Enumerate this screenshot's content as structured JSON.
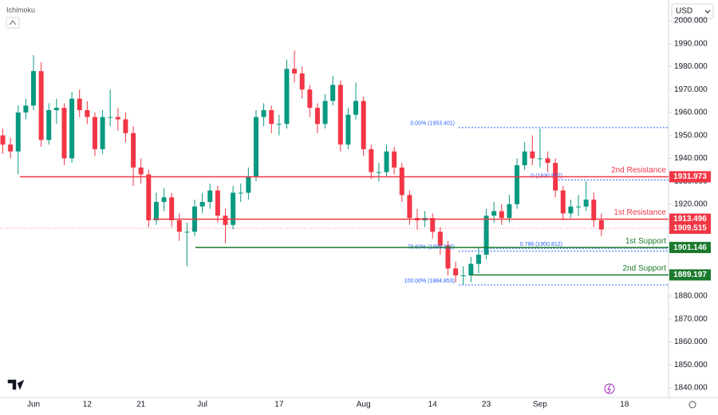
{
  "chart_data": {
    "type": "candlestick",
    "indicator": "Ichimoku",
    "currency": "USD",
    "categories": [
      null,
      null,
      null,
      null,
      "Jun",
      null,
      null,
      null,
      null,
      null,
      null,
      "12",
      null,
      null,
      null,
      null,
      null,
      null,
      "21",
      null,
      null,
      null,
      null,
      null,
      null,
      null,
      "Jul",
      null,
      null,
      null,
      null,
      null,
      null,
      null,
      null,
      null,
      "17",
      null,
      null,
      null,
      null,
      null,
      null,
      null,
      null,
      null,
      null,
      "Aug",
      null,
      null,
      null,
      null,
      null,
      null,
      null,
      null,
      "14",
      null,
      null,
      null,
      null,
      null,
      null,
      "23",
      null,
      null,
      null,
      null,
      null,
      null,
      "Sep",
      null,
      null,
      null,
      null,
      null,
      null,
      null,
      null,
      null,
      null,
      "18"
    ],
    "open": [
      1950,
      1946,
      1943,
      1960,
      1963,
      1978,
      1948,
      1961,
      1962,
      1940,
      1966,
      1961,
      1958,
      1944,
      1958,
      1958,
      1957,
      1951,
      1936,
      1933,
      1913,
      1921,
      1923,
      1913,
      1908,
      1908,
      1919,
      1921,
      1926,
      1915,
      1911,
      1925,
      1925,
      1932,
      1958,
      1961,
      1955,
      1955,
      1979,
      1977,
      1970,
      1962,
      1955,
      1965,
      1972,
      1946,
      1959,
      1965,
      1944,
      1934,
      1934,
      1943,
      1936,
      1924,
      1914,
      1913,
      1914,
      1908,
      1902,
      1892,
      1889,
      1889,
      1894,
      1898,
      1915,
      1917,
      1914,
      1920,
      1937,
      1943,
      1940,
      1940,
      1938,
      1926,
      1916,
      1919,
      1919,
      1922,
      1913,
      null,
      null,
      null
    ],
    "high": [
      1953,
      1949,
      1963,
      1966,
      1985,
      1982,
      1964,
      1966,
      1964,
      1969,
      1970,
      1965,
      1960,
      1961,
      1970,
      1962,
      1960,
      1954,
      1940,
      1935,
      1925,
      1927,
      1925,
      1916,
      1912,
      1922,
      1925,
      1929,
      1928,
      1918,
      1928,
      1929,
      1936,
      1961,
      1964,
      1963,
      1959,
      1983,
      1987,
      1980,
      1972,
      1964,
      1968,
      1976,
      1974,
      1962,
      1973,
      1967,
      1946,
      1938,
      1946,
      1945,
      1938,
      1926,
      1918,
      1917,
      1916,
      1910,
      1904,
      1895,
      1893,
      1897,
      1901,
      1918,
      1921,
      1920,
      1924,
      1940,
      1947,
      1950,
      1953,
      1943,
      1940,
      1928,
      1922,
      1924,
      1930,
      1925,
      1916,
      null,
      null,
      null
    ],
    "low": [
      1942,
      1940,
      1933,
      1957,
      1961,
      1945,
      1946,
      1955,
      1937,
      1938,
      1958,
      1955,
      1941,
      1942,
      1954,
      1952,
      1947,
      1928,
      1929,
      1910,
      1911,
      1917,
      1910,
      1904,
      1893,
      1906,
      1916,
      1918,
      1912,
      1903,
      1909,
      1921,
      1922,
      1930,
      1954,
      1951,
      1950,
      1953,
      1973,
      1966,
      1958,
      1951,
      1953,
      1963,
      1943,
      1944,
      1957,
      1941,
      1931,
      1930,
      1932,
      1933,
      1921,
      1911,
      1909,
      1910,
      1905,
      1898,
      1889,
      1886,
      1885,
      1886,
      1890,
      1896,
      1912,
      1911,
      1912,
      1918,
      1935,
      1937,
      1936,
      1934,
      1923,
      1913,
      1914,
      1915,
      1917,
      1910,
      1906,
      null,
      null,
      null
    ],
    "close": [
      1946,
      1943,
      1960,
      1963,
      1978,
      1948,
      1961,
      1962,
      1940,
      1966,
      1961,
      1958,
      1944,
      1958,
      1958,
      1957,
      1951,
      1936,
      1933,
      1913,
      1921,
      1923,
      1913,
      1908,
      1908,
      1919,
      1921,
      1926,
      1915,
      1911,
      1925,
      1925,
      1932,
      1958,
      1961,
      1955,
      1955,
      1979,
      1977,
      1970,
      1962,
      1955,
      1965,
      1972,
      1946,
      1959,
      1965,
      1944,
      1934,
      1934,
      1943,
      1936,
      1924,
      1914,
      1913,
      1914,
      1908,
      1902,
      1892,
      1889,
      1889,
      1894,
      1898,
      1915,
      1917,
      1914,
      1920,
      1937,
      1943,
      1940,
      1940,
      1938,
      1926,
      1916,
      1919,
      1919,
      1922,
      1913,
      1909,
      null,
      null,
      null
    ],
    "up_color": "#089981",
    "down_color": "#f23645",
    "ylim": [
      1835.8,
      2009
    ],
    "yticks": [
      {
        "value": 1840,
        "label": "1840.000"
      },
      {
        "value": 1850,
        "label": "1850.000"
      },
      {
        "value": 1860,
        "label": "1860.000"
      },
      {
        "value": 1870,
        "label": "1870.000"
      },
      {
        "value": 1880,
        "label": "1880.000"
      },
      {
        "value": 1890,
        "label": "1890.000"
      },
      {
        "value": 1900,
        "label": "1900.000"
      },
      {
        "value": 1910,
        "label": "1910.000"
      },
      {
        "value": 1920,
        "label": "1920.000"
      },
      {
        "value": 1930,
        "label": "1930.000"
      },
      {
        "value": 1940,
        "label": "1940.000"
      },
      {
        "value": 1950,
        "label": "1950.000"
      },
      {
        "value": 1960,
        "label": "1960.000"
      },
      {
        "value": 1970,
        "label": "1970.000"
      },
      {
        "value": 1980,
        "label": "1980.000"
      },
      {
        "value": 1990,
        "label": "1990.000"
      },
      {
        "value": 2000,
        "label": "2000.000"
      }
    ],
    "levels": [
      {
        "name": "2nd Resistance",
        "value": 1931.973,
        "color": "#f23645"
      },
      {
        "name": "1st Resistance",
        "value": 1913.496,
        "color": "#f23645"
      },
      {
        "name": "1st Support",
        "value": 1901.146,
        "color": "#1b7a2e"
      },
      {
        "name": "2nd Support",
        "value": 1889.197,
        "color": "#1b7a2e"
      }
    ],
    "last_price": {
      "value": 1909.515,
      "color": "#f23645"
    },
    "fib_color": "#2962ff",
    "fib": [
      {
        "value": 1953.401,
        "label": "0.00% (1953.401)"
      },
      {
        "value": 1930.597,
        "label": "0 (1930.597)"
      },
      {
        "value": 1900.812,
        "label": "0.786 (1900.812)"
      },
      {
        "value": 1899.522,
        "label": "78.60% (1899.522)"
      },
      {
        "value": 1884.853,
        "label": "100.00% (1884.853)"
      }
    ]
  }
}
